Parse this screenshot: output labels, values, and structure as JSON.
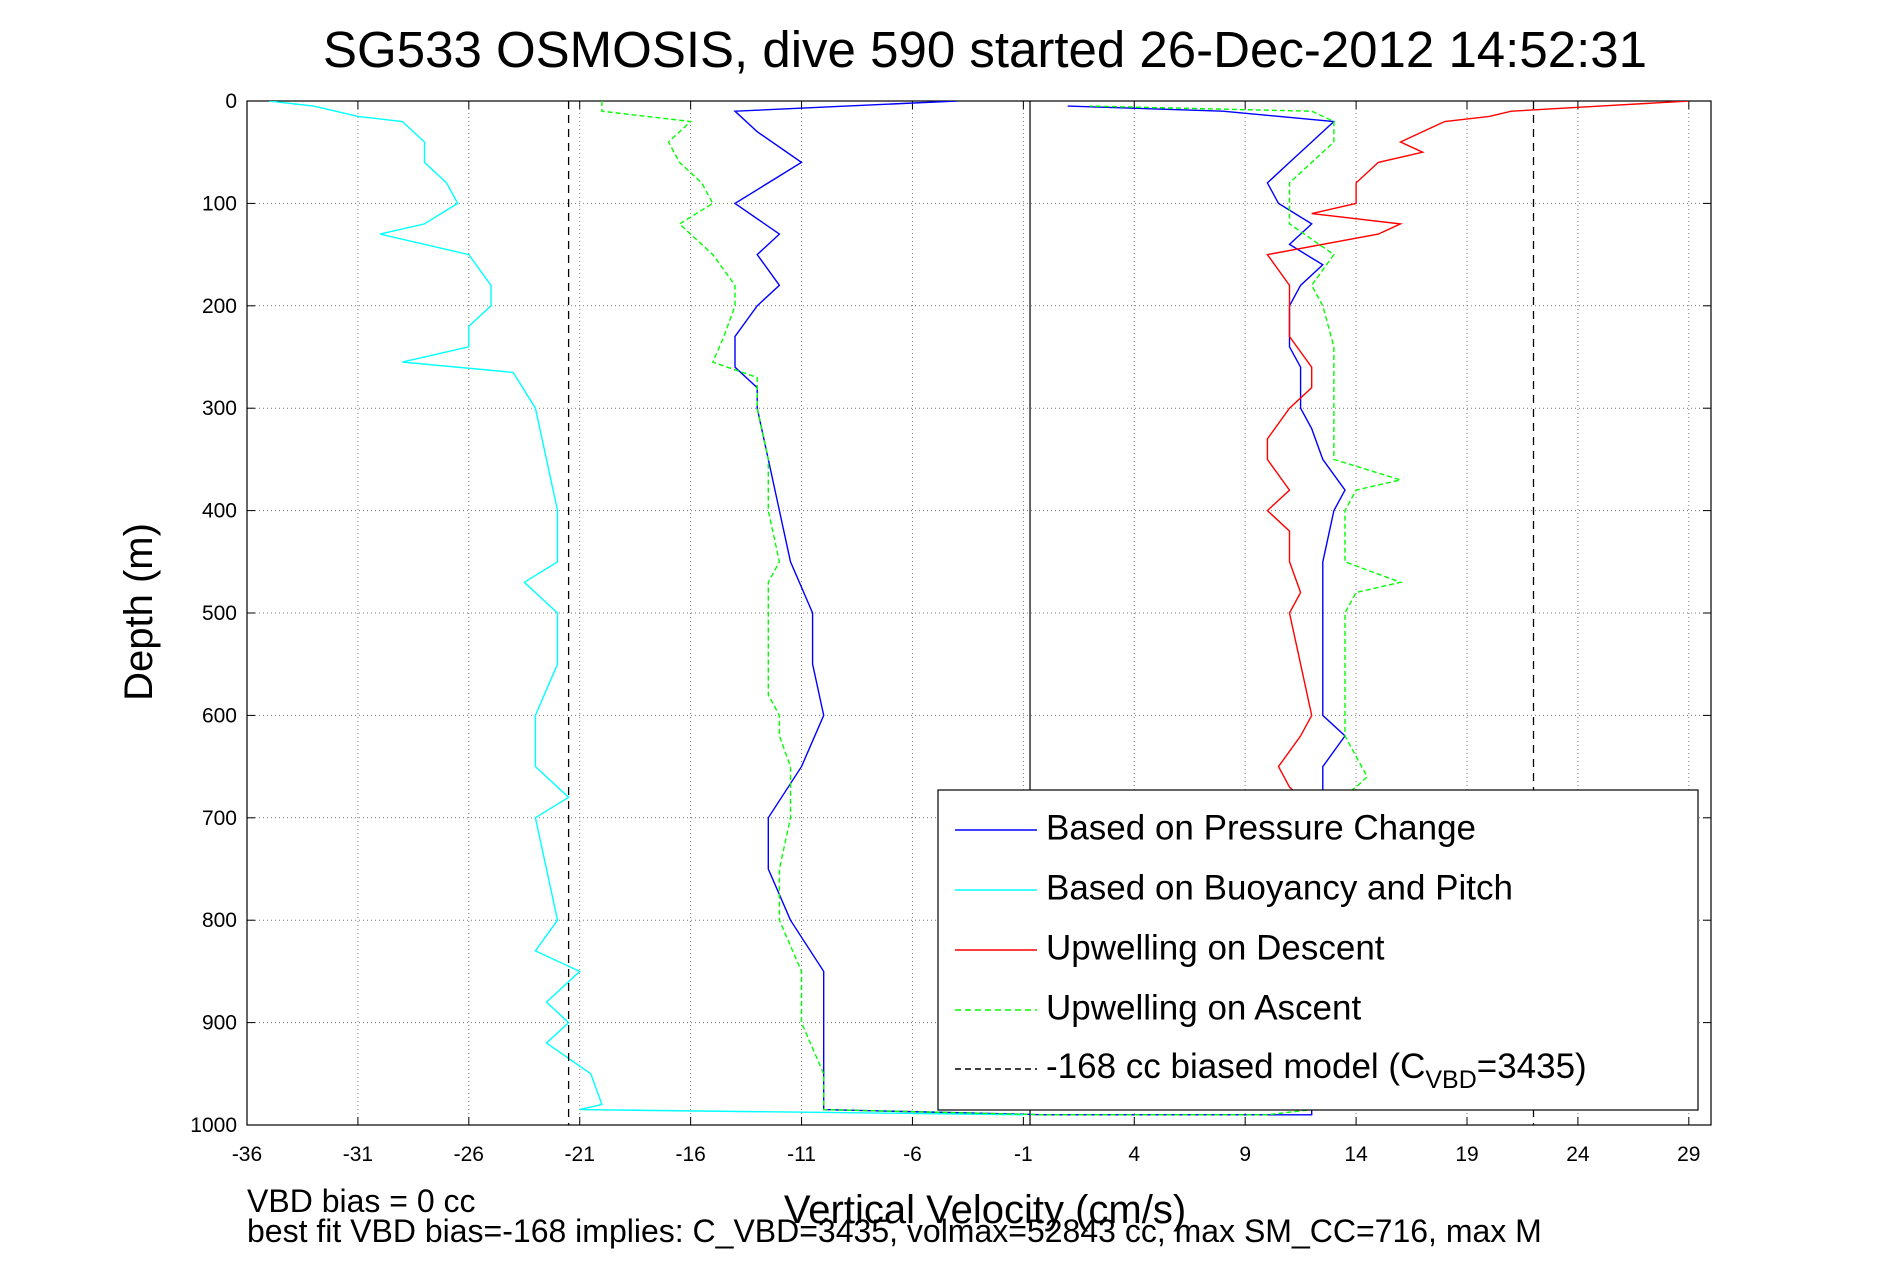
{
  "chart_data": {
    "type": "line",
    "title": "SG533 OSMOSIS, dive 590 started 26-Dec-2012 14:52:31",
    "xlabel": "Vertical Velocity (cm/s)",
    "ylabel": "Depth (m)",
    "xlim": [
      -36,
      30
    ],
    "ylim": [
      0,
      1000
    ],
    "y_reversed": true,
    "xticks": [
      "-36",
      "-31",
      "-26",
      "-21",
      "-16",
      "-11",
      "-6",
      "-1",
      "4",
      "9",
      "14",
      "19",
      "24",
      "29"
    ],
    "yticks": [
      "0",
      "100",
      "200",
      "300",
      "400",
      "500",
      "600",
      "700",
      "800",
      "900",
      "1000"
    ],
    "grid": true,
    "legend_position": "bottom-right",
    "series": [
      {
        "name": "Based on Pressure Change",
        "color": "#0000ff",
        "style": "solid",
        "depth": [
          0,
          10,
          30,
          60,
          100,
          130,
          150,
          180,
          200,
          230,
          260,
          280,
          300,
          350,
          400,
          450,
          500,
          550,
          600,
          650,
          700,
          750,
          800,
          850,
          900,
          950,
          985,
          990,
          990,
          985,
          960,
          900,
          850,
          800,
          750,
          700,
          650,
          620,
          600,
          560,
          520,
          480,
          450,
          400,
          380,
          350,
          320,
          300,
          260,
          240,
          200,
          180,
          160,
          140,
          120,
          100,
          80,
          60,
          40,
          20,
          10,
          5
        ],
        "values": [
          -4,
          -14,
          -13,
          -11,
          -14,
          -12,
          -13,
          -12,
          -13,
          -14,
          -14,
          -13,
          -13,
          -12.5,
          -12,
          -11.5,
          -10.5,
          -10.5,
          -10,
          -11,
          -12.5,
          -12.5,
          -11.5,
          -10,
          -10,
          -10,
          -10,
          0,
          12,
          12,
          12,
          12,
          12.5,
          12.5,
          12.5,
          12.5,
          12.5,
          13.5,
          12.5,
          12.5,
          12.5,
          12.5,
          12.5,
          13,
          13.5,
          12.5,
          12,
          11.5,
          11.5,
          11,
          11,
          11.5,
          12.5,
          11,
          12,
          10.5,
          10,
          11,
          12,
          13,
          8,
          1
        ]
      },
      {
        "name": "Based on Buoyancy and Pitch",
        "color": "#00ffff",
        "style": "solid",
        "depth": [
          0,
          5,
          10,
          15,
          20,
          40,
          60,
          80,
          100,
          120,
          130,
          150,
          180,
          200,
          220,
          240,
          255,
          265,
          300,
          350,
          400,
          450,
          470,
          500,
          550,
          600,
          650,
          680,
          700,
          750,
          800,
          830,
          850,
          880,
          900,
          920,
          950,
          980,
          985,
          990
        ],
        "values": [
          -35,
          -33,
          -32,
          -31,
          -29,
          -28,
          -28,
          -27,
          -26.5,
          -28,
          -30,
          -26,
          -25,
          -25,
          -26,
          -26,
          -29,
          -24,
          -23,
          -22.5,
          -22,
          -22,
          -23.5,
          -22,
          -22,
          -23,
          -23,
          -21.5,
          -23,
          -22.5,
          -22,
          -23,
          -21,
          -22.5,
          -21.5,
          -22.5,
          -20.5,
          -20,
          -21,
          -1
        ]
      },
      {
        "name": "Upwelling on Descent",
        "color": "#ff0000",
        "style": "solid",
        "depth": [
          0,
          5,
          10,
          15,
          20,
          30,
          40,
          50,
          60,
          80,
          100,
          110,
          120,
          130,
          150,
          180,
          200,
          230,
          260,
          280,
          300,
          330,
          350,
          380,
          400,
          420,
          450,
          480,
          500,
          550,
          600,
          620,
          650,
          670,
          680
        ],
        "values": [
          29,
          25,
          21,
          20,
          18,
          17,
          16,
          17,
          15,
          14,
          14,
          12,
          16,
          15,
          10,
          11,
          11,
          11,
          12,
          12,
          11,
          10,
          10,
          11,
          10,
          11,
          11,
          11.5,
          11,
          11.5,
          12,
          11.5,
          10.5,
          11,
          11.5
        ]
      },
      {
        "name": "Upwelling on Ascent",
        "color": "#00ff00",
        "style": "dashed",
        "depth": [
          0,
          10,
          20,
          40,
          60,
          80,
          100,
          120,
          150,
          180,
          200,
          230,
          255,
          270,
          300,
          350,
          370,
          400,
          450,
          470,
          480,
          500,
          550,
          580,
          600,
          620,
          650,
          700,
          750,
          800,
          850,
          900,
          950,
          985,
          990,
          990,
          985,
          960,
          920,
          900,
          880,
          850,
          820,
          800,
          780,
          750,
          720,
          700,
          670,
          660,
          640,
          620,
          600,
          580,
          550,
          500,
          480,
          470,
          450,
          400,
          380,
          370,
          350,
          330,
          300,
          280,
          260,
          240,
          200,
          180,
          150,
          120,
          100,
          80,
          60,
          40,
          20,
          10,
          5
        ],
        "values": [
          -20,
          -20,
          -16,
          -17,
          -16.5,
          -15.5,
          -15,
          -16.5,
          -15,
          -14,
          -14,
          -14.5,
          -15,
          -13,
          -13,
          -12.5,
          -12.5,
          -12.5,
          -12,
          -12.5,
          -12.5,
          -12.5,
          -12.5,
          -12.5,
          -12,
          -12,
          -11.5,
          -11.5,
          -12,
          -12,
          -11,
          -11,
          -10,
          -10,
          0,
          10,
          12,
          13,
          12.5,
          12.5,
          13,
          13.5,
          13.5,
          13.5,
          13,
          13,
          13,
          12,
          14,
          14.5,
          14,
          13.5,
          13.5,
          13.5,
          13.5,
          13.5,
          14,
          16,
          13.5,
          13.5,
          14,
          16,
          13,
          13,
          13,
          13,
          13,
          13,
          12.5,
          12,
          13,
          11,
          11,
          11,
          12,
          13,
          13,
          12,
          2
        ]
      },
      {
        "name": "-168 cc biased model (C_VBD=3435)",
        "color": "#000000",
        "style": "dashed",
        "depth": [
          0,
          1000
        ],
        "values": [
          -21.5,
          -21.5
        ],
        "mirror_values": [
          22,
          22
        ]
      }
    ],
    "vertical_zero_line": -0.7
  },
  "legend": {
    "entries": [
      {
        "label": "Based on Pressure Change",
        "color": "#0000ff",
        "dash": ""
      },
      {
        "label": "Based on Buoyancy and Pitch",
        "color": "#00ffff",
        "dash": ""
      },
      {
        "label": "Upwelling on Descent",
        "color": "#ff0000",
        "dash": ""
      },
      {
        "label": "Upwelling on Ascent",
        "color": "#00ff00",
        "dash": "6,4"
      }
    ],
    "model_prefix": "-168 cc biased model (C",
    "model_sub": "VBD",
    "model_suffix": "=3435)"
  },
  "footer": {
    "line1": "VBD bias = 0 cc",
    "line2": "best fit VBD bias=-168 implies: C_VBD=3435, volmax=52843 cc, max SM_CC=716, max M"
  }
}
